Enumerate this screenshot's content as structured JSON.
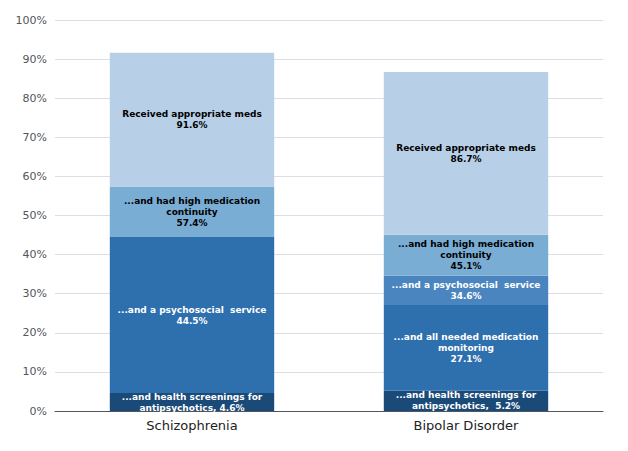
{
  "chart_data": {
    "type": "bar",
    "stacked": true,
    "categories": [
      "Schizophrenia",
      "Bipolar Disorder"
    ],
    "series": [
      {
        "values": [
          4.6,
          5.2
        ],
        "colors": [
          "#1a4a78",
          "#1a4a78"
        ],
        "value_labels": [
          "...and health screenings for\nantipsychotics, 4.6%",
          "...and health screenings for\nantipsychotics,  5.2%"
        ]
      },
      {
        "values": [
          39.9,
          21.9
        ],
        "colors": [
          "#2e6fad",
          "#2e6fad"
        ],
        "value_labels": [
          "...and a psychosocial  service\n44.5%",
          "...and all needed medication\nmonitoring\n27.1%"
        ]
      },
      {
        "values": [
          12.9,
          7.5
        ],
        "colors": [
          "#7aadd4",
          "#4a85c0"
        ],
        "value_labels": [
          "...and had high medication\ncontinuity\n57.4%",
          "...and a psychosocial  service\n34.6%"
        ]
      },
      {
        "values": [
          34.2,
          10.5
        ],
        "colors": [
          "#b8cfe8",
          "#7aadd4"
        ],
        "value_labels": [
          "Received appropriate meds\n91.6%",
          "...and had high medication\ncontinuity\n45.1%"
        ]
      },
      {
        "values": [
          null,
          41.6
        ],
        "colors": [
          null,
          "#b8cfe8"
        ],
        "value_labels": [
          null,
          "Received appropriate meds\n86.7%"
        ]
      }
    ],
    "ylim": [
      0,
      100
    ],
    "yticks": [
      {
        "value": 0,
        "label": "0%"
      },
      {
        "value": 10,
        "label": "10%"
      },
      {
        "value": 20,
        "label": "20%"
      },
      {
        "value": 30,
        "label": "30%"
      },
      {
        "value": 40,
        "label": "40%"
      },
      {
        "value": 50,
        "label": "50%"
      },
      {
        "value": 60,
        "label": "60%"
      },
      {
        "value": 70,
        "label": "70%"
      },
      {
        "value": 80,
        "label": "80%"
      },
      {
        "value": 90,
        "label": "90%"
      },
      {
        "value": 100,
        "label": "100%"
      }
    ],
    "grid": true
  }
}
